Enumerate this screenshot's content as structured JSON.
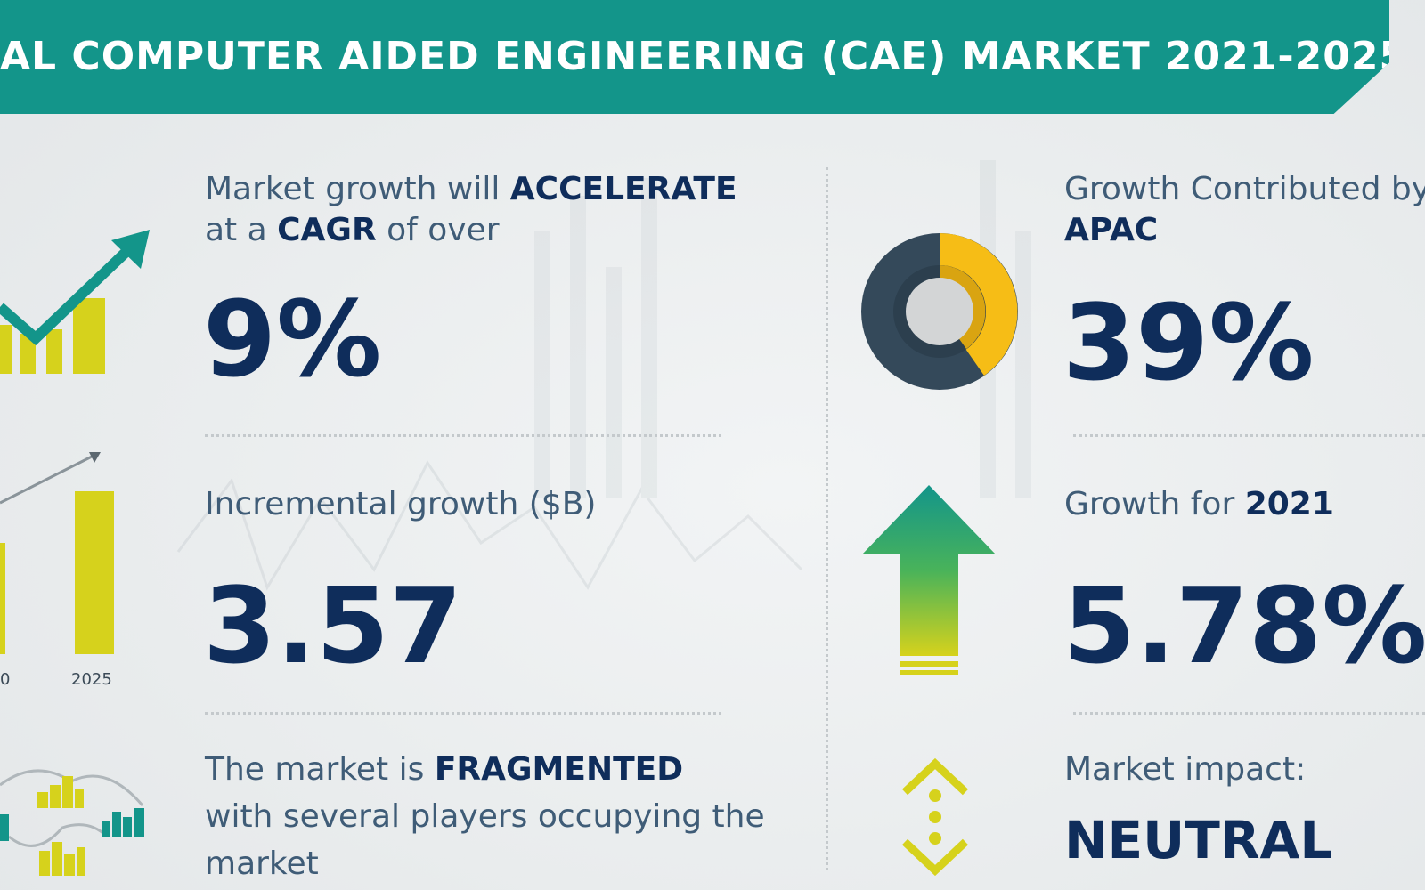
{
  "header": {
    "title": "AL COMPUTER AIDED ENGINEERING (CAE) MARKET 2021-2025"
  },
  "cagr": {
    "line1_pre": "Market growth will ",
    "line1_em": "ACCELERATE",
    "line2_pre": "at a ",
    "line2_em": "CAGR",
    "line2_post": " of over",
    "value": "9%"
  },
  "incremental": {
    "label": "Incremental growth ($B)",
    "value": "3.57",
    "years": [
      "0",
      "2025"
    ]
  },
  "fragmented": {
    "line1_pre": "The market is ",
    "line1_em": "FRAGMENTED",
    "line2": "with several players occupying the",
    "line3": "market"
  },
  "apac": {
    "label": "Growth Contributed by",
    "region": "APAC",
    "value": "39%"
  },
  "growth2021": {
    "label_pre": "Growth for ",
    "year": "2021",
    "value": "5.78%"
  },
  "impact": {
    "label": "Market impact:",
    "value": "NEUTRAL"
  },
  "colors": {
    "teal": "#13958a",
    "navy": "#0f2d5b",
    "yellow": "#d6d21c",
    "gold": "#f6bd16",
    "slate": "#34495a",
    "green": "#1a9a7a"
  }
}
